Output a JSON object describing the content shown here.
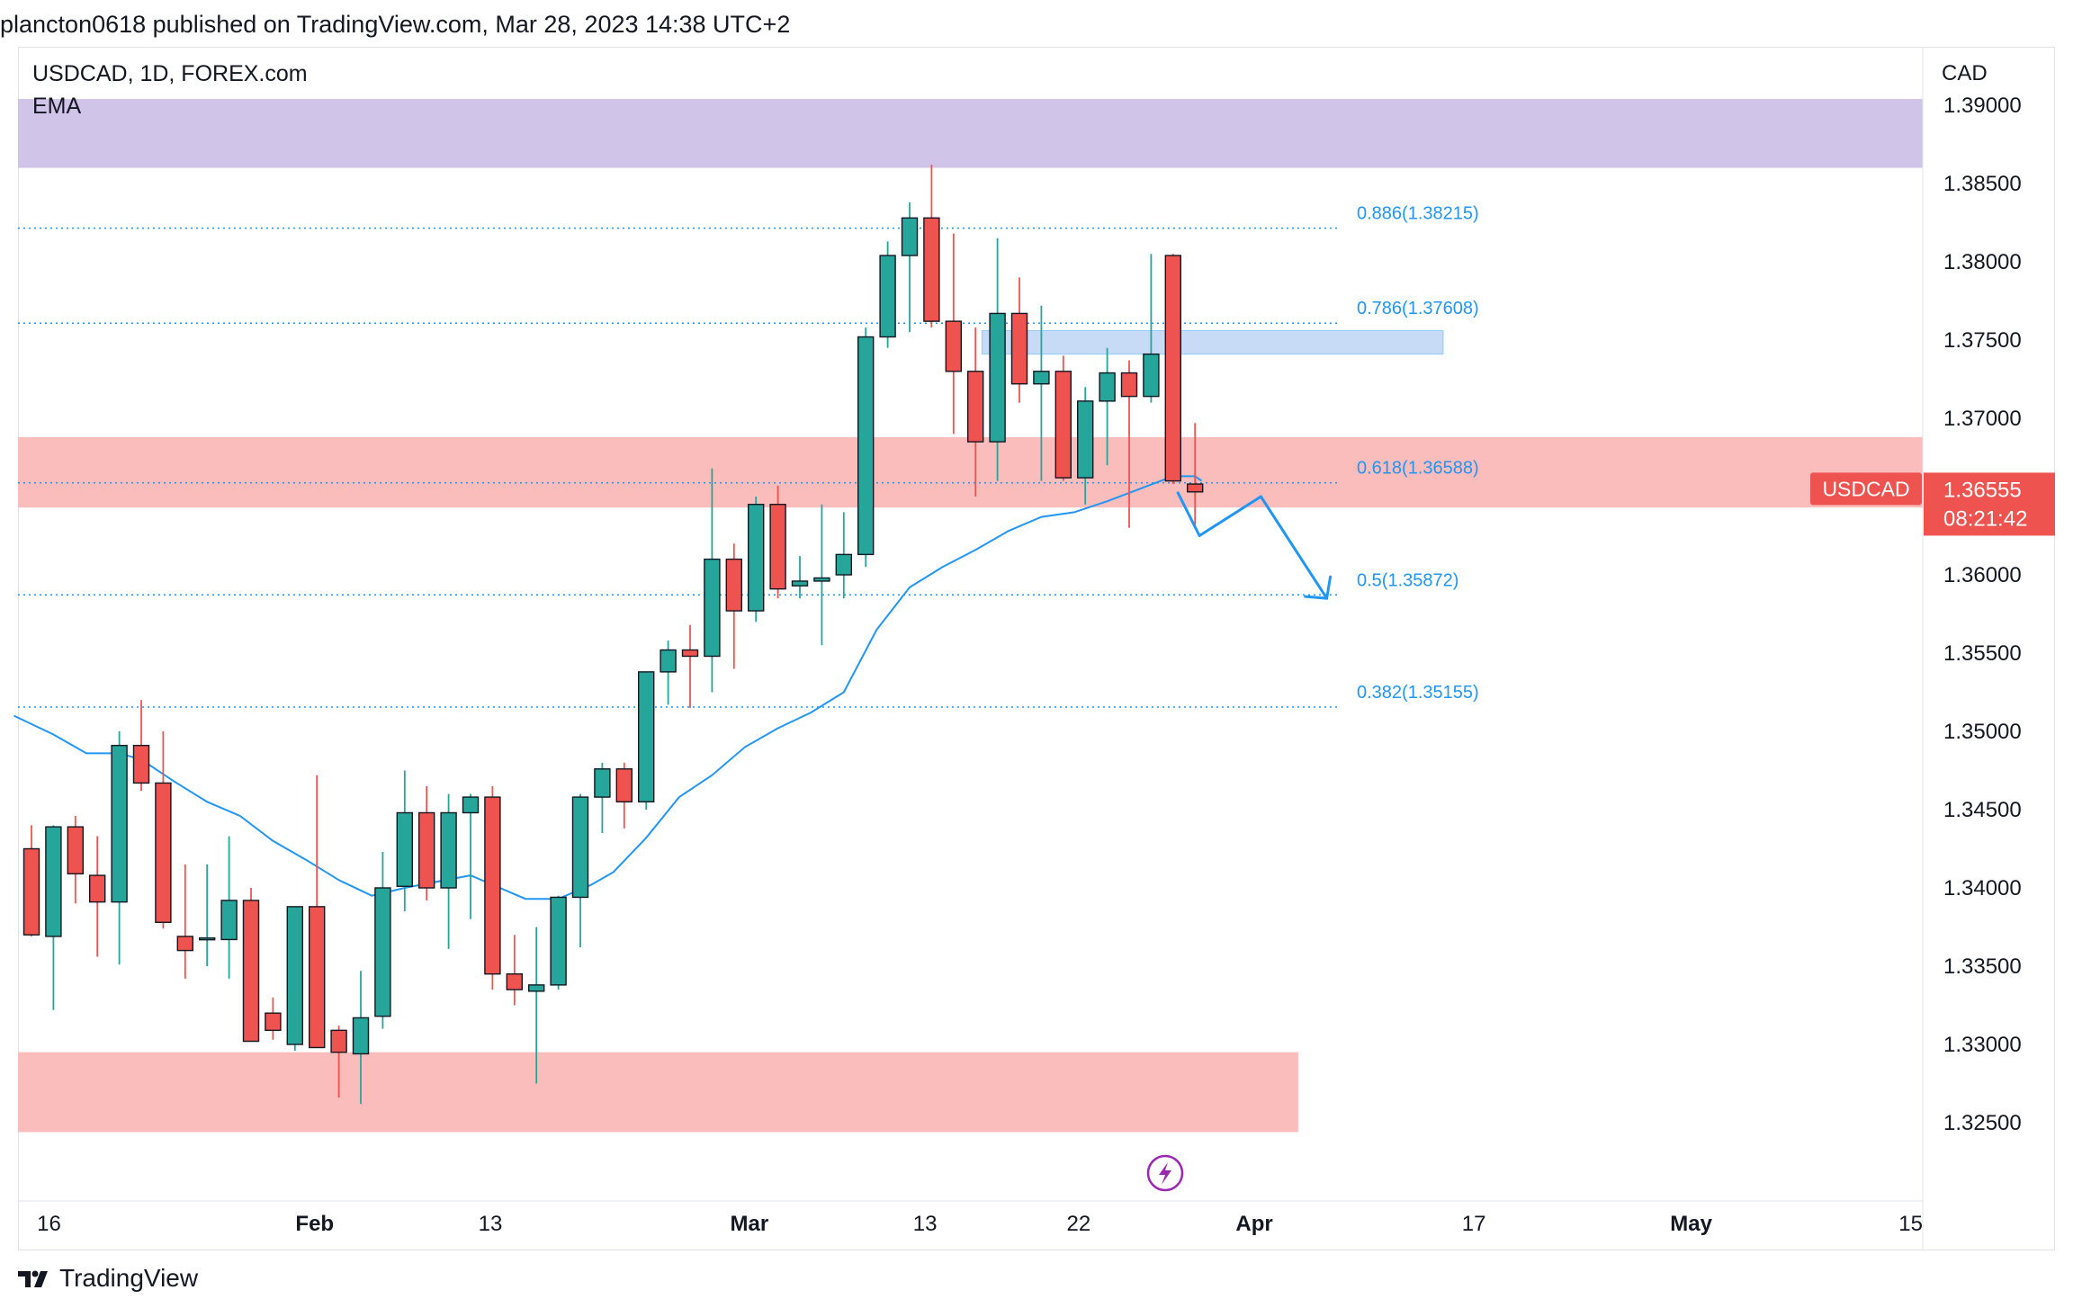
{
  "header": {
    "publish_text": "plancton0618 published on TradingView.com, Mar 28, 2023 14:38 UTC+2"
  },
  "legend": {
    "symbol_line": "USDCAD, 1D, FOREX.com",
    "indicator": "EMA"
  },
  "footer": {
    "brand": "TradingView"
  },
  "colors": {
    "up": "#26a69a",
    "down": "#ef5350",
    "ema": "#2196f3",
    "supply_zone": "#d1c4e9",
    "pink_zone": "#fbbcbc",
    "blue_zone": "#c7dbf6",
    "fib": "#2196f3"
  },
  "price_tag": {
    "symbol": "USDCAD",
    "price": "1.36555",
    "countdown": "08:21:42"
  },
  "chart_data": {
    "type": "candlestick",
    "symbol": "USDCAD",
    "timeframe": "1D",
    "currency_label": "CAD",
    "ylim": [
      1.3205,
      1.3915
    ],
    "y_ticks": [
      "1.39000",
      "1.38500",
      "1.38000",
      "1.37500",
      "1.37000",
      "1.36555",
      "1.36000",
      "1.35500",
      "1.35000",
      "1.34500",
      "1.34000",
      "1.33500",
      "1.33000",
      "1.32500"
    ],
    "x_ticks": [
      {
        "label": "16",
        "x": 0.8
      },
      {
        "label": "Feb",
        "x": 12.9
      },
      {
        "label": "13",
        "x": 20.9
      },
      {
        "label": "Mar",
        "x": 32.7
      },
      {
        "label": "13",
        "x": 40.7
      },
      {
        "label": "22",
        "x": 47.7
      },
      {
        "label": "Apr",
        "x": 55.7
      },
      {
        "label": "17",
        "x": 65.7
      },
      {
        "label": "May",
        "x": 75.6
      },
      {
        "label": "15",
        "x": 85.6
      }
    ],
    "candles": [
      {
        "x": 0,
        "o": 1.3425,
        "h": 1.344,
        "l": 1.3369,
        "c": 1.337
      },
      {
        "x": 1,
        "o": 1.3369,
        "h": 1.344,
        "l": 1.3322,
        "c": 1.3439
      },
      {
        "x": 2,
        "o": 1.3439,
        "h": 1.3446,
        "l": 1.339,
        "c": 1.3409
      },
      {
        "x": 3,
        "o": 1.3408,
        "h": 1.3433,
        "l": 1.3356,
        "c": 1.3391
      },
      {
        "x": 4,
        "o": 1.3391,
        "h": 1.35,
        "l": 1.3351,
        "c": 1.3491
      },
      {
        "x": 5,
        "o": 1.3491,
        "h": 1.352,
        "l": 1.3462,
        "c": 1.3467
      },
      {
        "x": 6,
        "o": 1.3467,
        "h": 1.35,
        "l": 1.3374,
        "c": 1.3378
      },
      {
        "x": 7,
        "o": 1.3369,
        "h": 1.3415,
        "l": 1.3342,
        "c": 1.336
      },
      {
        "x": 8,
        "o": 1.3367,
        "h": 1.3415,
        "l": 1.335,
        "c": 1.3368
      },
      {
        "x": 9,
        "o": 1.3367,
        "h": 1.3433,
        "l": 1.3342,
        "c": 1.3392
      },
      {
        "x": 10,
        "o": 1.3392,
        "h": 1.34,
        "l": 1.3305,
        "c": 1.3302
      },
      {
        "x": 11,
        "o": 1.332,
        "h": 1.333,
        "l": 1.3303,
        "c": 1.3309
      },
      {
        "x": 12,
        "o": 1.33,
        "h": 1.3388,
        "l": 1.3296,
        "c": 1.3388
      },
      {
        "x": 13,
        "o": 1.3388,
        "h": 1.3472,
        "l": 1.3299,
        "c": 1.3298
      },
      {
        "x": 14,
        "o": 1.3309,
        "h": 1.3312,
        "l": 1.3266,
        "c": 1.3295
      },
      {
        "x": 15,
        "o": 1.3294,
        "h": 1.3347,
        "l": 1.3262,
        "c": 1.3317
      },
      {
        "x": 16,
        "o": 1.3318,
        "h": 1.3423,
        "l": 1.331,
        "c": 1.34
      },
      {
        "x": 17,
        "o": 1.3401,
        "h": 1.3475,
        "l": 1.3385,
        "c": 1.3448
      },
      {
        "x": 18,
        "o": 1.3448,
        "h": 1.3465,
        "l": 1.3392,
        "c": 1.34
      },
      {
        "x": 19,
        "o": 1.34,
        "h": 1.346,
        "l": 1.3361,
        "c": 1.3448
      },
      {
        "x": 20,
        "o": 1.3448,
        "h": 1.346,
        "l": 1.338,
        "c": 1.3458
      },
      {
        "x": 21,
        "o": 1.3458,
        "h": 1.3465,
        "l": 1.3335,
        "c": 1.3345
      },
      {
        "x": 22,
        "o": 1.3345,
        "h": 1.337,
        "l": 1.3325,
        "c": 1.3335
      },
      {
        "x": 23,
        "o": 1.3334,
        "h": 1.3375,
        "l": 1.3275,
        "c": 1.3338
      },
      {
        "x": 24,
        "o": 1.3338,
        "h": 1.3395,
        "l": 1.3335,
        "c": 1.3394
      },
      {
        "x": 25,
        "o": 1.3394,
        "h": 1.346,
        "l": 1.3362,
        "c": 1.3458
      },
      {
        "x": 26,
        "o": 1.3458,
        "h": 1.348,
        "l": 1.3435,
        "c": 1.3476
      },
      {
        "x": 27,
        "o": 1.3476,
        "h": 1.348,
        "l": 1.3438,
        "c": 1.3455
      },
      {
        "x": 28,
        "o": 1.3455,
        "h": 1.3538,
        "l": 1.345,
        "c": 1.3538
      },
      {
        "x": 29,
        "o": 1.3538,
        "h": 1.3558,
        "l": 1.3517,
        "c": 1.3552
      },
      {
        "x": 30,
        "o": 1.3552,
        "h": 1.3568,
        "l": 1.3515,
        "c": 1.3548
      },
      {
        "x": 31,
        "o": 1.3548,
        "h": 1.3668,
        "l": 1.3525,
        "c": 1.361
      },
      {
        "x": 32,
        "o": 1.361,
        "h": 1.362,
        "l": 1.354,
        "c": 1.3577
      },
      {
        "x": 33,
        "o": 1.3577,
        "h": 1.365,
        "l": 1.357,
        "c": 1.3645
      },
      {
        "x": 34,
        "o": 1.3645,
        "h": 1.3657,
        "l": 1.3585,
        "c": 1.3591
      },
      {
        "x": 35,
        "o": 1.3593,
        "h": 1.3612,
        "l": 1.3585,
        "c": 1.3596
      },
      {
        "x": 36,
        "o": 1.3596,
        "h": 1.3645,
        "l": 1.3555,
        "c": 1.3598
      },
      {
        "x": 37,
        "o": 1.36,
        "h": 1.364,
        "l": 1.3585,
        "c": 1.3613
      },
      {
        "x": 38,
        "o": 1.3613,
        "h": 1.3758,
        "l": 1.3605,
        "c": 1.3752
      },
      {
        "x": 39,
        "o": 1.3752,
        "h": 1.3813,
        "l": 1.3745,
        "c": 1.3804
      },
      {
        "x": 40,
        "o": 1.3804,
        "h": 1.3838,
        "l": 1.3755,
        "c": 1.3828
      },
      {
        "x": 41,
        "o": 1.3828,
        "h": 1.3862,
        "l": 1.3758,
        "c": 1.3762
      },
      {
        "x": 42,
        "o": 1.3762,
        "h": 1.3818,
        "l": 1.369,
        "c": 1.373
      },
      {
        "x": 43,
        "o": 1.373,
        "h": 1.3758,
        "l": 1.365,
        "c": 1.3685
      },
      {
        "x": 44,
        "o": 1.3685,
        "h": 1.3815,
        "l": 1.366,
        "c": 1.3767
      },
      {
        "x": 45,
        "o": 1.3767,
        "h": 1.379,
        "l": 1.371,
        "c": 1.3722
      },
      {
        "x": 46,
        "o": 1.3722,
        "h": 1.3772,
        "l": 1.366,
        "c": 1.373
      },
      {
        "x": 47,
        "o": 1.373,
        "h": 1.374,
        "l": 1.366,
        "c": 1.3662
      },
      {
        "x": 48,
        "o": 1.3662,
        "h": 1.372,
        "l": 1.3645,
        "c": 1.3711
      },
      {
        "x": 49,
        "o": 1.3711,
        "h": 1.3745,
        "l": 1.367,
        "c": 1.3729
      },
      {
        "x": 50,
        "o": 1.3729,
        "h": 1.3737,
        "l": 1.363,
        "c": 1.3714
      },
      {
        "x": 51,
        "o": 1.3714,
        "h": 1.3805,
        "l": 1.371,
        "c": 1.3741
      },
      {
        "x": 52,
        "o": 1.3804,
        "h": 1.3805,
        "l": 1.3658,
        "c": 1.366
      },
      {
        "x": 53,
        "o": 1.3658,
        "h": 1.3697,
        "l": 1.363,
        "c": 1.3653
      }
    ],
    "ema": [
      {
        "x": -0.8,
        "y": 1.351
      },
      {
        "x": 1,
        "y": 1.3498
      },
      {
        "x": 2.5,
        "y": 1.3486
      },
      {
        "x": 4,
        "y": 1.3486
      },
      {
        "x": 5,
        "y": 1.3482
      },
      {
        "x": 6.5,
        "y": 1.3468
      },
      {
        "x": 8,
        "y": 1.3455
      },
      {
        "x": 9.5,
        "y": 1.3446
      },
      {
        "x": 11,
        "y": 1.343
      },
      {
        "x": 12.5,
        "y": 1.3418
      },
      {
        "x": 14,
        "y": 1.3405
      },
      {
        "x": 15.5,
        "y": 1.3395
      },
      {
        "x": 17,
        "y": 1.34
      },
      {
        "x": 18.5,
        "y": 1.3404
      },
      {
        "x": 20,
        "y": 1.3408
      },
      {
        "x": 21,
        "y": 1.3402
      },
      {
        "x": 22.5,
        "y": 1.3393
      },
      {
        "x": 24,
        "y": 1.3393
      },
      {
        "x": 25.5,
        "y": 1.3402
      },
      {
        "x": 26.5,
        "y": 1.341
      },
      {
        "x": 28,
        "y": 1.3432
      },
      {
        "x": 29.5,
        "y": 1.3458
      },
      {
        "x": 31,
        "y": 1.3472
      },
      {
        "x": 32.5,
        "y": 1.349
      },
      {
        "x": 34,
        "y": 1.3502
      },
      {
        "x": 35.5,
        "y": 1.3512
      },
      {
        "x": 37,
        "y": 1.3525
      },
      {
        "x": 38.5,
        "y": 1.3565
      },
      {
        "x": 40,
        "y": 1.3592
      },
      {
        "x": 41.5,
        "y": 1.3605
      },
      {
        "x": 43,
        "y": 1.3616
      },
      {
        "x": 44.5,
        "y": 1.3628
      },
      {
        "x": 46,
        "y": 1.3637
      },
      {
        "x": 47.5,
        "y": 1.364
      },
      {
        "x": 49,
        "y": 1.3647
      },
      {
        "x": 50.5,
        "y": 1.3655
      },
      {
        "x": 52,
        "y": 1.3663
      },
      {
        "x": 53,
        "y": 1.3663
      },
      {
        "x": 53.3,
        "y": 1.366
      }
    ],
    "fib_levels": [
      {
        "label": "0.886(1.38215)",
        "value": 1.38215
      },
      {
        "label": "0.786(1.37608)",
        "value": 1.37608
      },
      {
        "label": "0.618(1.36588)",
        "value": 1.36588
      },
      {
        "label": "0.5(1.35872)",
        "value": 1.35872
      },
      {
        "label": "0.382(1.35155)",
        "value": 1.35155
      }
    ],
    "zones": [
      {
        "name": "supply-top",
        "y1": 1.3904,
        "y2": 1.386,
        "x_from": -1,
        "x_to": 88.5
      },
      {
        "name": "resistance-band",
        "y1": 1.3688,
        "y2": 1.3643,
        "x_from": -1,
        "x_to": 88.5
      },
      {
        "name": "blue-box",
        "y1": 1.3756,
        "y2": 1.3741,
        "x_from": 43.3,
        "x_to": 64.3
      },
      {
        "name": "demand-bottom",
        "y1": 1.3295,
        "y2": 1.3244,
        "x_from": -1,
        "x_to": 57.7
      }
    ],
    "projection": [
      {
        "x": 52.2,
        "y": 1.3653
      },
      {
        "x": 53.2,
        "y": 1.3625
      },
      {
        "x": 56,
        "y": 1.365
      },
      {
        "x": 59,
        "y": 1.3585
      }
    ],
    "last_price": 1.36555
  }
}
